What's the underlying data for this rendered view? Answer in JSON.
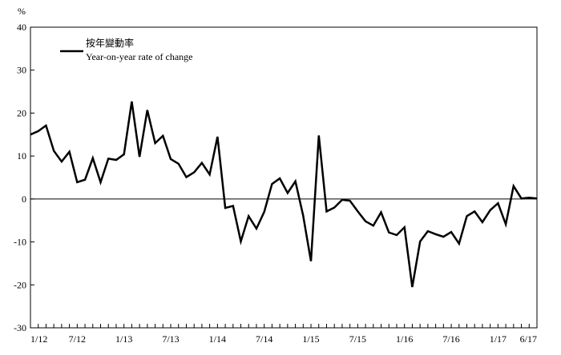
{
  "chart_data": {
    "type": "line",
    "ylabel": "%",
    "ylim": [
      -30,
      40
    ],
    "yticks": [
      -30,
      -20,
      -10,
      0,
      10,
      20,
      30,
      40
    ],
    "xtick_labels": [
      "1/12",
      "7/12",
      "1/13",
      "7/13",
      "1/14",
      "7/14",
      "1/15",
      "7/15",
      "1/16",
      "7/16",
      "1/17",
      "6/17"
    ],
    "legend": {
      "label_zh": "按年變動率",
      "label_en": "Year-on-year rate of change",
      "position": "top-left"
    },
    "grid": false,
    "zero_line": true,
    "series": [
      {
        "name": "Year-on-year rate of change",
        "color": "#000000",
        "values": [
          15.0,
          15.8,
          17.1,
          11.2,
          8.7,
          11.0,
          3.9,
          4.5,
          9.5,
          3.9,
          9.4,
          9.1,
          10.4,
          22.7,
          9.8,
          20.7,
          13.0,
          14.7,
          9.3,
          8.2,
          5.1,
          6.2,
          8.4,
          5.7,
          14.5,
          -2.1,
          -1.6,
          -9.9,
          -4.0,
          -6.9,
          -3.0,
          3.5,
          4.8,
          1.4,
          4.1,
          -3.9,
          -14.5,
          14.8,
          -2.9,
          -2.0,
          -0.2,
          -0.4,
          -2.9,
          -5.2,
          -6.2,
          -3.1,
          -7.8,
          -8.4,
          -6.6,
          -20.5,
          -9.9,
          -7.5,
          -8.2,
          -8.8,
          -7.7,
          -10.4,
          -4.0,
          -2.9,
          -5.4,
          -2.6,
          -1.0,
          -5.9,
          3.0,
          0.1,
          0.3,
          0.1
        ]
      }
    ]
  }
}
